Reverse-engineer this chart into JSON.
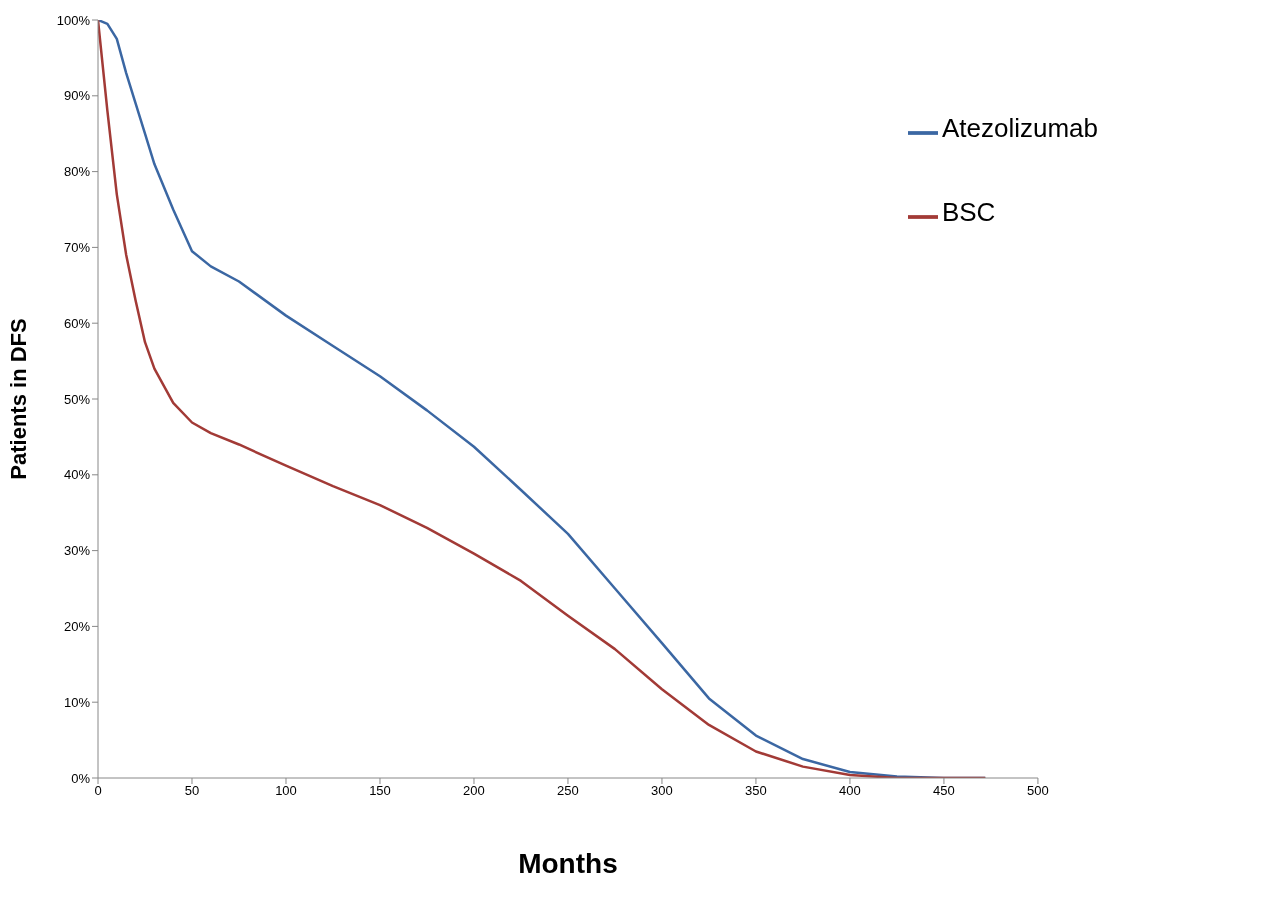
{
  "chart_data": {
    "type": "line",
    "xlabel": "Months",
    "ylabel": "Patients in DFS",
    "x": [
      0,
      5,
      10,
      15,
      20,
      25,
      30,
      40,
      50,
      60,
      75,
      100,
      125,
      150,
      175,
      200,
      225,
      250,
      275,
      300,
      325,
      350,
      375,
      400,
      425,
      450,
      472
    ],
    "series": [
      {
        "name": "Atezolizumab",
        "color": "#3b67a3",
        "values": [
          100,
          99.5,
          97.5,
          93,
          89,
          85,
          81,
          75,
          69.5,
          67.5,
          65.5,
          61,
          57,
          53,
          48.5,
          43.7,
          38,
          32.2,
          25,
          17.8,
          10.5,
          5.6,
          2.5,
          0.8,
          0.2,
          0,
          0
        ]
      },
      {
        "name": "BSC",
        "color": "#a23a36",
        "values": [
          100,
          88,
          77,
          69,
          63,
          57.5,
          54,
          49.5,
          46.9,
          45.5,
          44,
          41.2,
          38.5,
          36,
          33,
          29.6,
          26,
          21.4,
          17,
          11.7,
          7,
          3.5,
          1.5,
          0.4,
          0,
          0,
          0
        ]
      }
    ],
    "xlim": [
      0,
      500
    ],
    "xticks": [
      0,
      50,
      100,
      150,
      200,
      250,
      300,
      350,
      400,
      450,
      500
    ],
    "ylim": [
      0,
      100
    ],
    "yticks": [
      {
        "value": 0,
        "label": "0%"
      },
      {
        "value": 10,
        "label": "10%"
      },
      {
        "value": 20,
        "label": "20%"
      },
      {
        "value": 30,
        "label": "30%"
      },
      {
        "value": 40,
        "label": "40%"
      },
      {
        "value": 50,
        "label": "50%"
      },
      {
        "value": 60,
        "label": "60%"
      },
      {
        "value": 70,
        "label": "70%"
      },
      {
        "value": 80,
        "label": "80%"
      },
      {
        "value": 90,
        "label": "90%"
      },
      {
        "value": 100,
        "label": "100%"
      }
    ],
    "grid": false,
    "legend": "top right",
    "line_style": "solid"
  }
}
